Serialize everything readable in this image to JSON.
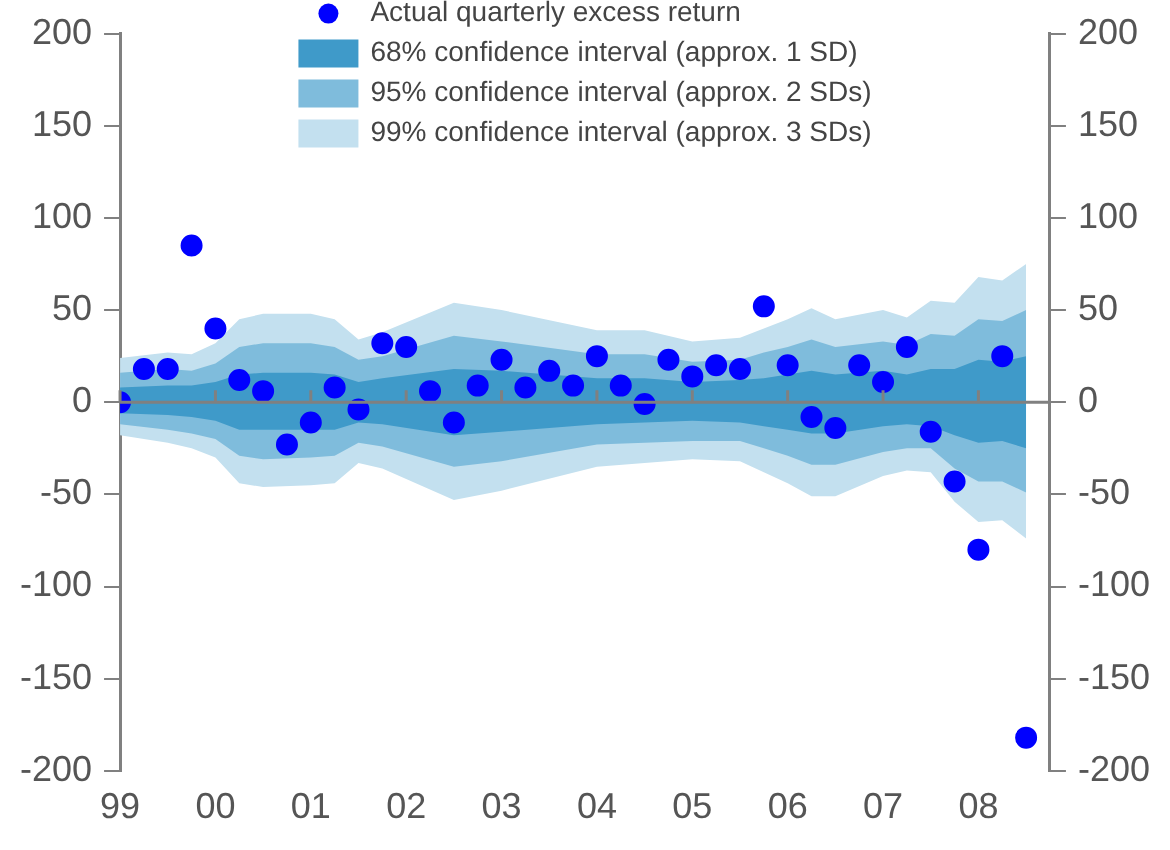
{
  "chart_data": {
    "type": "scatter",
    "x": [
      1999,
      1999.25,
      1999.5,
      1999.75,
      2000,
      2000.25,
      2000.5,
      2000.75,
      2001,
      2001.25,
      2001.5,
      2001.75,
      2002,
      2002.25,
      2002.5,
      2002.75,
      2003,
      2003.25,
      2003.5,
      2003.75,
      2004,
      2004.25,
      2004.5,
      2004.75,
      2005,
      2005.25,
      2005.5,
      2005.75,
      2006,
      2006.25,
      2006.5,
      2006.75,
      2007,
      2007.25,
      2007.5,
      2007.75,
      2008,
      2008.25,
      2008.5
    ],
    "series": [
      {
        "name": "Actual quarterly excess return",
        "color": "#0000ff",
        "values": [
          0,
          18,
          18,
          85,
          40,
          12,
          6,
          -23,
          -11,
          8,
          -4,
          32,
          30,
          6,
          -11,
          9,
          23,
          8,
          17,
          9,
          25,
          9,
          -1,
          23,
          14,
          20,
          18,
          52,
          20,
          -8,
          -14,
          20,
          11,
          30,
          -16,
          -43,
          -80,
          25,
          -182
        ]
      },
      {
        "name": "68% confidence interval (approx. 1 SD)",
        "type": "area",
        "color": "#3f9ac9",
        "values": [
          null,
          null,
          null,
          null,
          null,
          null,
          null,
          null,
          null,
          null,
          null,
          null,
          null,
          null,
          null,
          null,
          null,
          null,
          null,
          null,
          null,
          null,
          null,
          null,
          null,
          null,
          null
        ],
        "x": [
          1999,
          1999.5,
          1999.75,
          2000,
          2000.25,
          2000.5,
          2001,
          2001.25,
          2001.5,
          2001.75,
          2002.5,
          2003,
          2004,
          2004.5,
          2005,
          2005.5,
          2005.75,
          2006,
          2006.25,
          2006.5,
          2007,
          2007.25,
          2007.5,
          2007.75,
          2008,
          2008.25,
          2008.5
        ],
        "lower": [
          -6,
          -7,
          -8,
          -10,
          -15,
          -15,
          -15,
          -15,
          -11,
          -12,
          -18,
          -16,
          -12,
          -11,
          -10,
          -11,
          -13,
          -15,
          -17,
          -17,
          -13,
          -12,
          -13,
          -18,
          -22,
          -21,
          -25
        ],
        "upper": [
          8,
          9,
          9,
          11,
          15,
          16,
          16,
          15,
          11,
          13,
          18,
          17,
          13,
          13,
          11,
          12,
          13,
          15,
          17,
          15,
          17,
          15,
          18,
          18,
          23,
          22,
          25
        ]
      },
      {
        "name": "95% confidence interval (approx. 2 SDs)",
        "type": "area",
        "color": "#7fbcdc",
        "values": [
          null,
          null,
          null,
          null,
          null,
          null,
          null,
          null,
          null,
          null,
          null,
          null,
          null,
          null,
          null,
          null,
          null,
          null,
          null,
          null,
          null,
          null,
          null,
          null,
          null,
          null,
          null
        ],
        "x": [
          1999,
          1999.5,
          1999.75,
          2000,
          2000.25,
          2000.5,
          2001,
          2001.25,
          2001.5,
          2001.75,
          2002.5,
          2003,
          2004,
          2004.5,
          2005,
          2005.5,
          2005.75,
          2006,
          2006.25,
          2006.5,
          2007,
          2007.25,
          2007.5,
          2007.75,
          2008,
          2008.25,
          2008.5
        ],
        "lower": [
          -12,
          -15,
          -17,
          -20,
          -29,
          -31,
          -30,
          -29,
          -22,
          -24,
          -35,
          -32,
          -23,
          -22,
          -21,
          -21,
          -25,
          -29,
          -34,
          -34,
          -27,
          -25,
          -25,
          -36,
          -43,
          -43,
          -49
        ],
        "upper": [
          16,
          18,
          17,
          21,
          30,
          32,
          32,
          30,
          23,
          25,
          36,
          33,
          26,
          26,
          22,
          23,
          27,
          30,
          34,
          30,
          33,
          31,
          37,
          36,
          45,
          44,
          50
        ]
      },
      {
        "name": "99% confidence interval (approx. 3 SDs)",
        "type": "area",
        "color": "#c3e0ef",
        "values": [
          null,
          null,
          null,
          null,
          null,
          null,
          null,
          null,
          null,
          null,
          null,
          null,
          null,
          null,
          null,
          null,
          null,
          null,
          null,
          null,
          null,
          null,
          null,
          null,
          null,
          null,
          null
        ],
        "x": [
          1999,
          1999.5,
          1999.75,
          2000,
          2000.25,
          2000.5,
          2001,
          2001.25,
          2001.5,
          2001.75,
          2002.5,
          2003,
          2004,
          2004.5,
          2005,
          2005.5,
          2005.75,
          2006,
          2006.25,
          2006.5,
          2007,
          2007.25,
          2007.5,
          2007.75,
          2008,
          2008.25,
          2008.5
        ],
        "lower": [
          -18,
          -22,
          -25,
          -30,
          -44,
          -46,
          -45,
          -44,
          -33,
          -36,
          -53,
          -48,
          -35,
          -33,
          -31,
          -32,
          -38,
          -44,
          -51,
          -51,
          -40,
          -37,
          -38,
          -54,
          -65,
          -64,
          -74
        ],
        "upper": [
          24,
          27,
          26,
          32,
          45,
          48,
          48,
          45,
          34,
          38,
          54,
          50,
          39,
          39,
          33,
          35,
          40,
          45,
          51,
          45,
          50,
          46,
          55,
          54,
          68,
          66,
          75
        ]
      }
    ],
    "xlim": [
      1999,
      2008.75
    ],
    "xticks": [
      {
        "value": 1999,
        "label": "99"
      },
      {
        "value": 2000,
        "label": "00"
      },
      {
        "value": 2001,
        "label": "01"
      },
      {
        "value": 2002,
        "label": "02"
      },
      {
        "value": 2003,
        "label": "03"
      },
      {
        "value": 2004,
        "label": "04"
      },
      {
        "value": 2005,
        "label": "05"
      },
      {
        "value": 2006,
        "label": "06"
      },
      {
        "value": 2007,
        "label": "07"
      },
      {
        "value": 2008,
        "label": "08"
      }
    ],
    "ylim": [
      -200,
      200
    ],
    "yticks": [
      -200,
      -150,
      -100,
      -50,
      0,
      50,
      100,
      150,
      200
    ],
    "y2lim": [
      -200,
      200
    ],
    "y2ticks": [
      -200,
      -150,
      -100,
      -50,
      0,
      50,
      100,
      150,
      200
    ],
    "ref_lines": [
      {
        "axis": "y",
        "value": 0,
        "color": "#808080"
      }
    ],
    "legend": "top",
    "marker": "circle"
  }
}
